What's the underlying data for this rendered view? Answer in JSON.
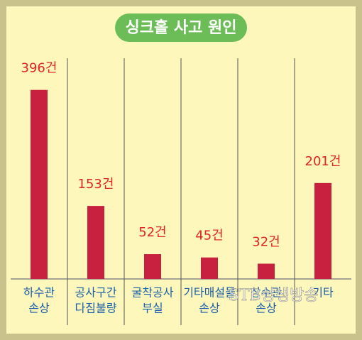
{
  "chart_data": {
    "type": "bar",
    "title": "싱크홀 사고 원인",
    "categories": [
      [
        "하수관",
        "손상"
      ],
      [
        "공사구간",
        "다짐불량"
      ],
      [
        "굴착공사",
        "부실"
      ],
      [
        "기타매설물",
        "손상"
      ],
      [
        "상수관",
        "손상"
      ],
      [
        "기타"
      ]
    ],
    "values": [
      396,
      153,
      52,
      45,
      32,
      201
    ],
    "value_labels": [
      "396건",
      "153건",
      "52건",
      "45건",
      "32건",
      "201건"
    ],
    "color": "#c8203f",
    "ylim": [
      0,
      400
    ],
    "watermark": "STB상생방송"
  }
}
